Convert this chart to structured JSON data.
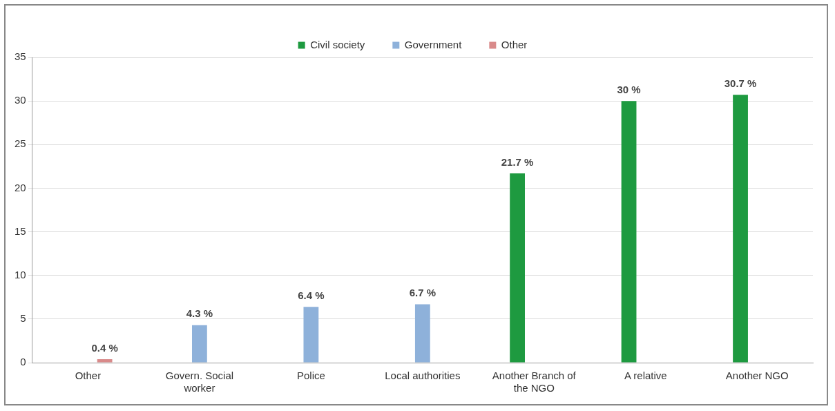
{
  "chart_data": {
    "type": "bar",
    "categories": [
      "Other",
      "Govern. Social worker",
      "Police",
      "Local authorities",
      "Another Branch of the NGO",
      "A relative",
      "Another NGO"
    ],
    "series": [
      {
        "name": "Civil society",
        "color": "#1e9a40",
        "values": [
          null,
          null,
          null,
          null,
          21.7,
          30,
          30.7
        ],
        "value_labels": [
          null,
          null,
          null,
          null,
          "21.7 %",
          "30 %",
          "30.7 %"
        ]
      },
      {
        "name": "Government",
        "color": "#8eb1da",
        "values": [
          null,
          4.3,
          6.4,
          6.7,
          null,
          null,
          null
        ],
        "value_labels": [
          null,
          "4.3 %",
          "6.4 %",
          "6.7 %",
          null,
          null,
          null
        ]
      },
      {
        "name": "Other",
        "color": "#d98a8a",
        "values": [
          0.4,
          null,
          null,
          null,
          null,
          null,
          null
        ],
        "value_labels": [
          "0.4 %",
          null,
          null,
          null,
          null,
          null,
          null
        ]
      }
    ],
    "ylim": [
      0,
      35
    ],
    "yticks": [
      0,
      5,
      10,
      15,
      20,
      25,
      30,
      35
    ],
    "grid": "y",
    "legend": "top"
  }
}
